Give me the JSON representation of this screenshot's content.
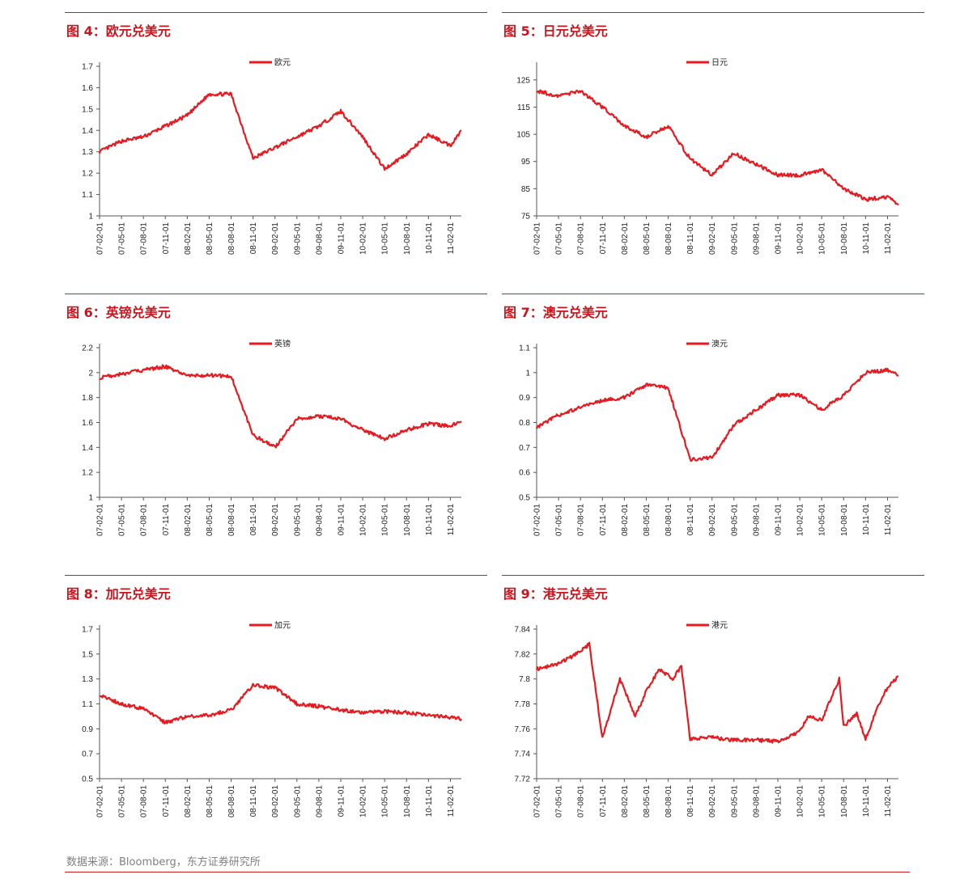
{
  "source": "数据来源：Bloomberg，东方证券研究所",
  "x_ticks": [
    "07-02-01",
    "07-05-01",
    "07-08-01",
    "07-11-01",
    "08-02-01",
    "08-05-01",
    "08-08-01",
    "08-11-01",
    "09-02-01",
    "09-05-01",
    "09-08-01",
    "09-11-01",
    "10-02-01",
    "10-05-01",
    "10-08-01",
    "10-11-01",
    "11-02-01"
  ],
  "series_color": "#e8191f",
  "panels": [
    {
      "title": "图 4：欧元兑美元",
      "chart_data": {
        "type": "line",
        "series": [
          {
            "name": "欧元",
            "x": [
              0,
              1,
              2,
              3,
              4,
              5,
              6,
              7,
              8,
              9,
              10,
              11,
              12,
              13,
              14,
              15,
              16,
              16.5
            ],
            "values": [
              1.3,
              1.35,
              1.37,
              1.42,
              1.47,
              1.57,
              1.57,
              1.27,
              1.32,
              1.37,
              1.42,
              1.49,
              1.37,
              1.22,
              1.29,
              1.38,
              1.33,
              1.4
            ]
          }
        ],
        "yticks": [
          "1",
          "1.1",
          "1.2",
          "1.3",
          "1.4",
          "1.5",
          "1.6",
          "1.7"
        ],
        "ylim": [
          1,
          1.7
        ],
        "grid": false,
        "legend": "top-center"
      }
    },
    {
      "title": "图 5：日元兑美元",
      "chart_data": {
        "type": "line",
        "series": [
          {
            "name": "日元",
            "x": [
              0,
              1,
              2,
              3,
              4,
              5,
              6,
              7,
              8,
              9,
              10,
              11,
              12,
              13,
              14,
              15,
              16,
              16.5
            ],
            "values": [
              121,
              119,
              121,
              115,
              108,
              104,
              108,
              96,
              90,
              98,
              94,
              90,
              90,
              92,
              85,
              81,
              82,
              79
            ]
          }
        ],
        "yticks": [
          "75",
          "85",
          "95",
          "105",
          "115",
          "125"
        ],
        "ylim": [
          75,
          130
        ],
        "grid": false,
        "legend": "top-center"
      }
    },
    {
      "title": "图 6：英镑兑美元",
      "chart_data": {
        "type": "line",
        "series": [
          {
            "name": "英镑",
            "x": [
              0,
              1,
              2,
              3,
              4,
              5,
              6,
              7,
              8,
              9,
              10,
              11,
              12,
              13,
              14,
              15,
              16,
              16.5
            ],
            "values": [
              1.96,
              1.99,
              2.02,
              2.05,
              1.97,
              1.98,
              1.97,
              1.5,
              1.4,
              1.63,
              1.65,
              1.63,
              1.54,
              1.47,
              1.54,
              1.59,
              1.57,
              1.61
            ]
          }
        ],
        "yticks": [
          "1",
          "1.2",
          "1.4",
          "1.6",
          "1.8",
          "2",
          "2.2"
        ],
        "ylim": [
          1,
          2.2
        ],
        "grid": false,
        "legend": "top-center"
      }
    },
    {
      "title": "图 7：澳元兑美元",
      "chart_data": {
        "type": "line",
        "series": [
          {
            "name": "澳元",
            "x": [
              0,
              1,
              2,
              3,
              4,
              5,
              6,
              7,
              8,
              9,
              10,
              11,
              12,
              13,
              14,
              15,
              16,
              16.5
            ],
            "values": [
              0.78,
              0.83,
              0.86,
              0.89,
              0.9,
              0.95,
              0.94,
              0.65,
              0.66,
              0.79,
              0.85,
              0.91,
              0.91,
              0.85,
              0.91,
              1.0,
              1.01,
              0.99
            ]
          }
        ],
        "yticks": [
          "0.5",
          "0.6",
          "0.7",
          "0.8",
          "0.9",
          "1",
          "1.1"
        ],
        "ylim": [
          0.5,
          1.1
        ],
        "grid": false,
        "legend": "top-center"
      }
    },
    {
      "title": "图 8：加元兑美元",
      "chart_data": {
        "type": "line",
        "series": [
          {
            "name": "加元",
            "x": [
              0,
              1,
              2,
              3,
              4,
              5,
              6,
              7,
              8,
              9,
              10,
              11,
              12,
              13,
              14,
              15,
              16,
              16.5
            ],
            "values": [
              1.17,
              1.1,
              1.06,
              0.95,
              1.0,
              1.01,
              1.05,
              1.25,
              1.23,
              1.1,
              1.08,
              1.05,
              1.03,
              1.04,
              1.03,
              1.01,
              0.99,
              0.98
            ]
          }
        ],
        "yticks": [
          "0.5",
          "0.7",
          "0.9",
          "1.1",
          "1.3",
          "1.5",
          "1.7"
        ],
        "ylim": [
          0.5,
          1.7
        ],
        "grid": false,
        "legend": "top-center"
      }
    },
    {
      "title": "图 9：港元兑美元",
      "chart_data": {
        "type": "line",
        "series": [
          {
            "name": "港元",
            "x": [
              0,
              1,
              2,
              2.4,
              3,
              3.8,
              4.5,
              5,
              5.6,
              6.2,
              6.6,
              7,
              8,
              9,
              10,
              11,
              12,
              12.4,
              13,
              13.8,
              14,
              14.6,
              15,
              15.5,
              16,
              16.5
            ],
            "values": [
              7.808,
              7.812,
              7.822,
              7.828,
              7.753,
              7.8,
              7.77,
              7.79,
              7.808,
              7.8,
              7.81,
              7.752,
              7.753,
              7.751,
              7.751,
              7.75,
              7.758,
              7.77,
              7.767,
              7.8,
              7.762,
              7.772,
              7.752,
              7.775,
              7.793,
              7.802
            ]
          }
        ],
        "yticks": [
          "7.72",
          "7.74",
          "7.76",
          "7.78",
          "7.8",
          "7.82",
          "7.84"
        ],
        "ylim": [
          7.72,
          7.84
        ],
        "grid": false,
        "legend": "top-center"
      }
    }
  ]
}
